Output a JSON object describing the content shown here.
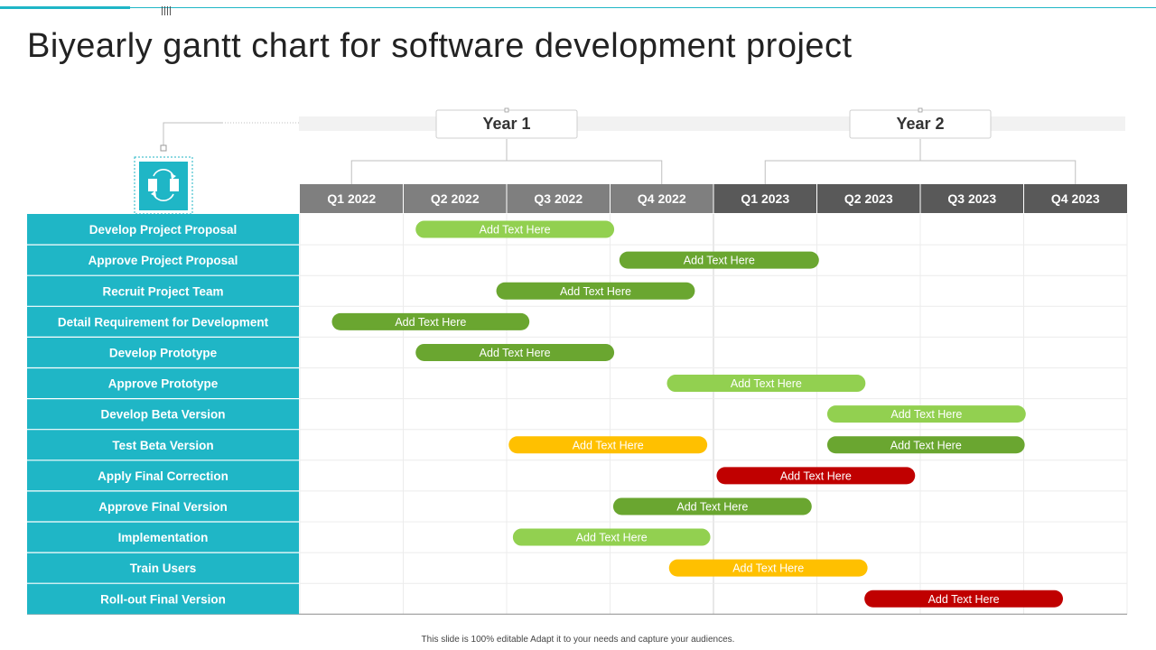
{
  "slide": {
    "title": "Biyearly gantt chart for software development project",
    "footer": "This slide is 100% editable Adapt it to your needs and capture your audiences."
  },
  "colors": {
    "teal": "#1fb6c6",
    "light_green": "#92d050",
    "dark_green": "#6aa630",
    "yellow": "#ffc000",
    "red": "#c00000",
    "header_dark": "#595959",
    "header_mid": "#7f7f7f"
  },
  "icons": {
    "header_icon": "document-cycle-icon"
  },
  "chart_data": {
    "type": "gantt",
    "years": [
      {
        "label": "Year 1",
        "start": 0,
        "end": 4
      },
      {
        "label": "Year 2",
        "start": 4,
        "end": 8
      }
    ],
    "quarters": [
      "Q1 2022",
      "Q2 2022",
      "Q3 2022",
      "Q4 2022",
      "Q1 2023",
      "Q2 2023",
      "Q3 2023",
      "Q4 2023"
    ],
    "tasks": [
      {
        "name": "Develop Project Proposal",
        "bars": [
          {
            "start": 1.12,
            "end": 3.04,
            "label": "Add Text Here",
            "color": "#92d050"
          }
        ]
      },
      {
        "name": "Approve Project Proposal",
        "bars": [
          {
            "start": 3.09,
            "end": 5.02,
            "label": "Add Text Here",
            "color": "#6aa630"
          }
        ]
      },
      {
        "name": "Recruit Project Team",
        "bars": [
          {
            "start": 1.9,
            "end": 3.82,
            "label": "Add Text Here",
            "color": "#6aa630"
          }
        ]
      },
      {
        "name": "Detail Requirement for Development",
        "bars": [
          {
            "start": 0.31,
            "end": 2.22,
            "label": "Add Text Here",
            "color": "#6aa630"
          }
        ]
      },
      {
        "name": "Develop Prototype",
        "bars": [
          {
            "start": 1.12,
            "end": 3.04,
            "label": "Add Text Here",
            "color": "#6aa630"
          }
        ]
      },
      {
        "name": "Approve Prototype",
        "bars": [
          {
            "start": 3.55,
            "end": 5.47,
            "label": "Add Text Here",
            "color": "#92d050"
          }
        ]
      },
      {
        "name": "Develop Beta Version",
        "bars": [
          {
            "start": 5.1,
            "end": 7.02,
            "label": "Add Text Here",
            "color": "#92d050"
          }
        ]
      },
      {
        "name": "Test Beta Version",
        "bars": [
          {
            "start": 2.02,
            "end": 3.94,
            "label": "Add Text Here",
            "color": "#ffc000"
          },
          {
            "start": 5.1,
            "end": 7.01,
            "label": "Add Text Here",
            "color": "#6aa630"
          }
        ]
      },
      {
        "name": "Apply Final Correction",
        "bars": [
          {
            "start": 4.03,
            "end": 5.95,
            "label": "Add Text Here",
            "color": "#c00000"
          }
        ]
      },
      {
        "name": "Approve Final Version",
        "bars": [
          {
            "start": 3.03,
            "end": 4.95,
            "label": "Add Text Here",
            "color": "#6aa630"
          }
        ]
      },
      {
        "name": "Implementation",
        "bars": [
          {
            "start": 2.06,
            "end": 3.97,
            "label": "Add Text Here",
            "color": "#92d050"
          }
        ]
      },
      {
        "name": "Train Users",
        "bars": [
          {
            "start": 3.57,
            "end": 5.49,
            "label": "Add Text Here",
            "color": "#ffc000"
          }
        ]
      },
      {
        "name": "Roll-out Final Version",
        "bars": [
          {
            "start": 5.46,
            "end": 7.38,
            "label": "Add Text Here",
            "color": "#c00000"
          }
        ]
      }
    ]
  }
}
